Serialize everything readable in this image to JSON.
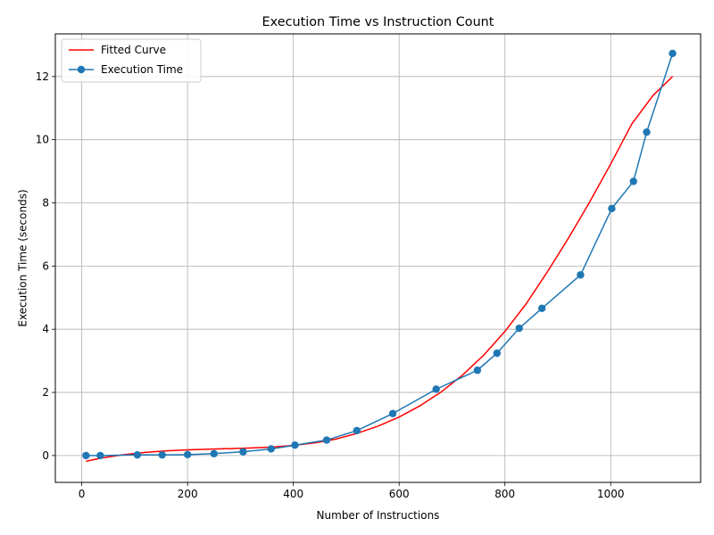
{
  "chart_data": {
    "type": "line",
    "title": "Execution Time vs Instruction Count",
    "xlabel": "Number of Instructions",
    "ylabel": "Execution Time (seconds)",
    "xlim": [
      -50,
      1170
    ],
    "ylim": [
      -0.85,
      13.35
    ],
    "xticks": [
      0,
      200,
      400,
      600,
      800,
      1000
    ],
    "yticks": [
      0,
      2,
      4,
      6,
      8,
      10,
      12
    ],
    "grid": true,
    "legend_position": "upper-left",
    "series": [
      {
        "name": "Fitted Curve",
        "style": "line",
        "color": "#ff0000",
        "x": [
          8,
          40,
          80,
          120,
          160,
          200,
          240,
          280,
          320,
          360,
          400,
          440,
          480,
          520,
          560,
          600,
          640,
          680,
          720,
          760,
          800,
          840,
          880,
          920,
          960,
          1000,
          1040,
          1080,
          1117
        ],
        "y": [
          -0.18,
          -0.07,
          0.03,
          0.1,
          0.15,
          0.18,
          0.2,
          0.22,
          0.24,
          0.27,
          0.32,
          0.4,
          0.52,
          0.7,
          0.93,
          1.22,
          1.58,
          2.02,
          2.55,
          3.18,
          3.93,
          4.8,
          5.81,
          6.88,
          8.02,
          9.23,
          10.5,
          11.4,
          12.0
        ]
      },
      {
        "name": "Execution Time",
        "style": "line-marker",
        "color": "#1f77b4",
        "x": [
          8,
          35,
          105,
          152,
          200,
          250,
          305,
          358,
          403,
          463,
          520,
          588,
          670,
          748,
          785,
          827,
          870,
          943,
          1002,
          1043,
          1068,
          1117
        ],
        "y": [
          0.0,
          0.0,
          0.02,
          0.02,
          0.03,
          0.06,
          0.12,
          0.21,
          0.33,
          0.49,
          0.79,
          1.33,
          2.1,
          2.7,
          3.24,
          4.03,
          4.66,
          5.72,
          7.82,
          8.68,
          10.24,
          12.73
        ]
      }
    ]
  }
}
